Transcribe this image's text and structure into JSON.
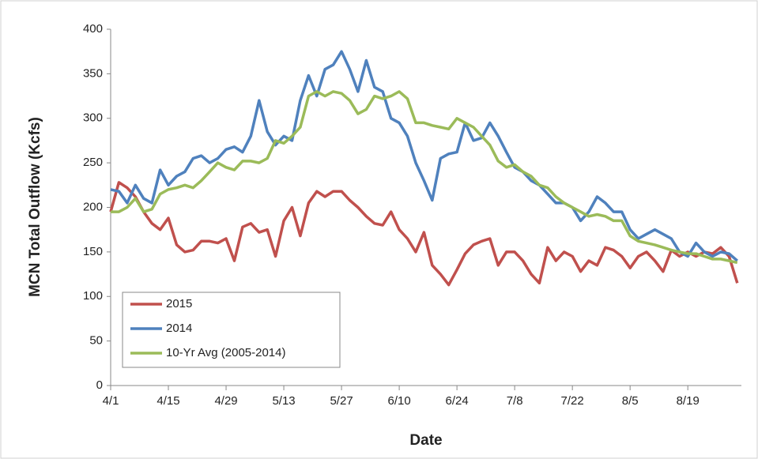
{
  "chart_data": {
    "type": "line",
    "x_label": "Date",
    "y_label": "MCN Total Outflow (Kcfs)",
    "x": [
      0,
      2,
      4,
      6,
      8,
      10,
      12,
      14,
      16,
      18,
      20,
      22,
      24,
      26,
      28,
      30,
      32,
      34,
      36,
      38,
      40,
      42,
      44,
      46,
      48,
      50,
      52,
      54,
      56,
      58,
      60,
      62,
      64,
      66,
      68,
      70,
      72,
      74,
      76,
      78,
      80,
      82,
      84,
      86,
      88,
      90,
      92,
      94,
      96,
      98,
      100,
      102,
      104,
      106,
      108,
      110,
      112,
      114,
      116,
      118,
      120,
      122,
      124,
      126,
      128,
      130,
      132,
      134,
      136,
      138,
      140,
      142,
      144,
      146,
      148,
      150,
      152
    ],
    "series": [
      {
        "name": "2015",
        "color": "#c0504d",
        "values": [
          195,
          228,
          222,
          212,
          195,
          182,
          175,
          188,
          158,
          150,
          152,
          162,
          162,
          160,
          165,
          140,
          178,
          182,
          172,
          175,
          145,
          185,
          200,
          168,
          205,
          218,
          212,
          218,
          218,
          208,
          200,
          190,
          182,
          180,
          195,
          175,
          165,
          150,
          172,
          135,
          125,
          113,
          130,
          148,
          158,
          162,
          165,
          135,
          150,
          150,
          140,
          125,
          115,
          155,
          140,
          150,
          145,
          128,
          140,
          135,
          155,
          152,
          145,
          132,
          145,
          150,
          140,
          128,
          152,
          145,
          150,
          145,
          150,
          148,
          155,
          145,
          115
        ]
      },
      {
        "name": "2014",
        "color": "#4f81bd",
        "values": [
          220,
          218,
          205,
          225,
          210,
          205,
          242,
          225,
          235,
          240,
          255,
          258,
          250,
          255,
          265,
          268,
          262,
          280,
          320,
          285,
          270,
          280,
          275,
          320,
          348,
          325,
          355,
          360,
          375,
          355,
          330,
          365,
          335,
          330,
          300,
          295,
          280,
          250,
          230,
          208,
          255,
          260,
          262,
          295,
          275,
          278,
          295,
          280,
          262,
          245,
          240,
          230,
          225,
          215,
          205,
          205,
          200,
          185,
          195,
          212,
          205,
          195,
          195,
          175,
          165,
          170,
          175,
          170,
          165,
          150,
          145,
          160,
          150,
          145,
          150,
          148,
          140
        ]
      },
      {
        "name": "10-Yr Avg (2005-2014)",
        "color": "#9bbb59",
        "values": [
          195,
          195,
          200,
          210,
          195,
          198,
          215,
          220,
          222,
          225,
          222,
          230,
          240,
          250,
          245,
          242,
          252,
          252,
          250,
          255,
          275,
          272,
          280,
          290,
          325,
          330,
          325,
          330,
          328,
          320,
          305,
          310,
          325,
          322,
          325,
          330,
          322,
          295,
          295,
          292,
          290,
          288,
          300,
          295,
          290,
          280,
          270,
          252,
          245,
          248,
          240,
          235,
          225,
          222,
          212,
          205,
          200,
          195,
          190,
          192,
          190,
          185,
          185,
          168,
          162,
          160,
          158,
          155,
          152,
          150,
          148,
          148,
          145,
          142,
          142,
          140,
          138
        ]
      }
    ],
    "xlim": [
      0,
      153
    ],
    "xticks": [
      {
        "value": 0,
        "label": "4/1"
      },
      {
        "value": 14,
        "label": "4/15"
      },
      {
        "value": 28,
        "label": "4/29"
      },
      {
        "value": 42,
        "label": "5/13"
      },
      {
        "value": 56,
        "label": "5/27"
      },
      {
        "value": 70,
        "label": "6/10"
      },
      {
        "value": 84,
        "label": "6/24"
      },
      {
        "value": 98,
        "label": "7/8"
      },
      {
        "value": 112,
        "label": "7/22"
      },
      {
        "value": 126,
        "label": "8/5"
      },
      {
        "value": 140,
        "label": "8/19"
      }
    ],
    "ylim": [
      0,
      400
    ],
    "yticks": [
      0,
      50,
      100,
      150,
      200,
      250,
      300,
      350,
      400
    ],
    "grid": false,
    "legend": "lower left"
  }
}
